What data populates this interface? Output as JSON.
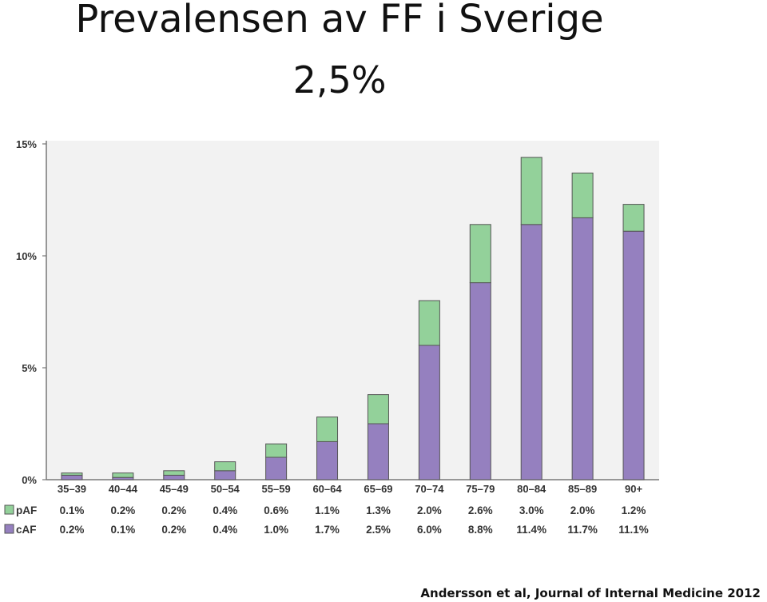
{
  "heading": {
    "title": "Prevalensen av FF i Sverige",
    "subtitle": "2,5%"
  },
  "citation": "Andersson et al, Journal of Internal Medicine 2012",
  "colors": {
    "pAF": "#93d19a",
    "cAF": "#9580bf",
    "plot_bg": "#f2f2f2",
    "axis": "#777777"
  },
  "chart_data": {
    "type": "bar",
    "stacked": true,
    "categories": [
      "35–39",
      "40–44",
      "45–49",
      "50–54",
      "55–59",
      "60–64",
      "65–69",
      "70–74",
      "75–79",
      "80–84",
      "85–89",
      "90+"
    ],
    "series": [
      {
        "name": "cAF",
        "values": [
          0.2,
          0.1,
          0.2,
          0.4,
          1.0,
          1.7,
          2.5,
          6.0,
          8.8,
          11.4,
          11.7,
          11.1
        ],
        "labels": [
          "0.2%",
          "0.1%",
          "0.2%",
          "0.4%",
          "1.0%",
          "1.7%",
          "2.5%",
          "6.0%",
          "8.8%",
          "11.4%",
          "11.7%",
          "11.1%"
        ]
      },
      {
        "name": "pAF",
        "values": [
          0.1,
          0.2,
          0.2,
          0.4,
          0.6,
          1.1,
          1.3,
          2.0,
          2.6,
          3.0,
          2.0,
          1.2
        ],
        "labels": [
          "0.1%",
          "0.2%",
          "0.2%",
          "0.4%",
          "0.6%",
          "1.1%",
          "1.3%",
          "2.0%",
          "2.6%",
          "3.0%",
          "2.0%",
          "1.2%"
        ]
      }
    ],
    "ylim": [
      0,
      15
    ],
    "yticks": [
      {
        "value": 0,
        "label": "0%"
      },
      {
        "value": 5,
        "label": "5%"
      },
      {
        "value": 10,
        "label": "10%"
      },
      {
        "value": 15,
        "label": "15%"
      }
    ],
    "data_table_rows": [
      "pAF",
      "cAF"
    ]
  }
}
